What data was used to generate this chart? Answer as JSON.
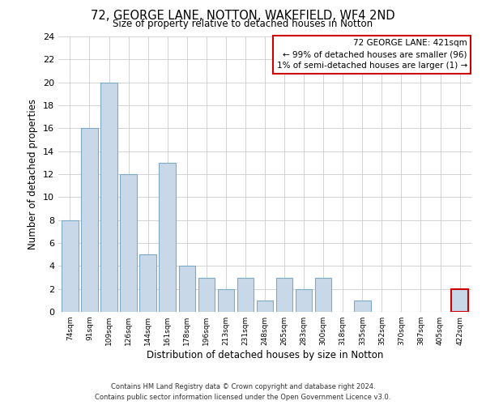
{
  "title": "72, GEORGE LANE, NOTTON, WAKEFIELD, WF4 2ND",
  "subtitle": "Size of property relative to detached houses in Notton",
  "xlabel": "Distribution of detached houses by size in Notton",
  "ylabel": "Number of detached properties",
  "bins": [
    "74sqm",
    "91sqm",
    "109sqm",
    "126sqm",
    "144sqm",
    "161sqm",
    "178sqm",
    "196sqm",
    "213sqm",
    "231sqm",
    "248sqm",
    "265sqm",
    "283sqm",
    "300sqm",
    "318sqm",
    "335sqm",
    "352sqm",
    "370sqm",
    "387sqm",
    "405sqm",
    "422sqm"
  ],
  "counts": [
    8,
    16,
    20,
    12,
    5,
    13,
    4,
    3,
    2,
    3,
    1,
    3,
    2,
    3,
    0,
    1,
    0,
    0,
    0,
    0,
    2
  ],
  "bar_color": "#c8d8e8",
  "bar_edge_color": "#7aaac8",
  "highlight_bar_index": 20,
  "highlight_bar_edge_color": "#cc0000",
  "ylim": [
    0,
    24
  ],
  "yticks": [
    0,
    2,
    4,
    6,
    8,
    10,
    12,
    14,
    16,
    18,
    20,
    22,
    24
  ],
  "annotation_title": "72 GEORGE LANE: 421sqm",
  "annotation_line1": "← 99% of detached houses are smaller (96)",
  "annotation_line2": "1% of semi-detached houses are larger (1) →",
  "annotation_box_edge_color": "#cc0000",
  "footer_line1": "Contains HM Land Registry data © Crown copyright and database right 2024.",
  "footer_line2": "Contains public sector information licensed under the Open Government Licence v3.0.",
  "bg_color": "#ffffff",
  "grid_color": "#cccccc"
}
